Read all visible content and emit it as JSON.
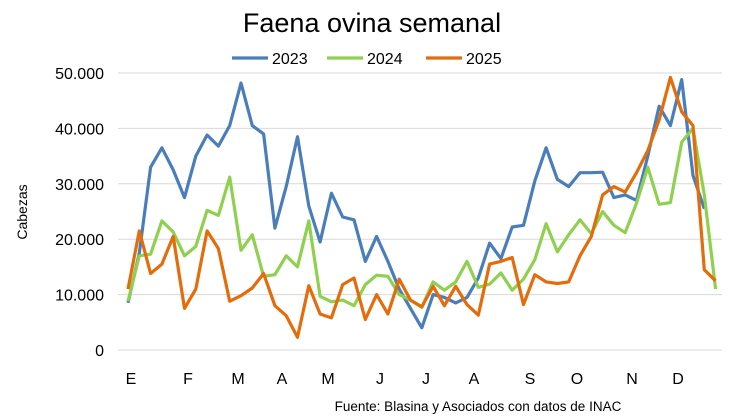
{
  "chart_data": {
    "type": "line",
    "title": "Faena ovina semanal",
    "ylabel": "Cabezas",
    "xlabel": "",
    "ylim": [
      0,
      50000
    ],
    "y_ticks": [
      "0",
      "10.000",
      "20.000",
      "30.000",
      "40.000",
      "50.000"
    ],
    "x_tick_labels": [
      "E",
      "F",
      "M",
      "A",
      "M",
      "J",
      "J",
      "A",
      "S",
      "O",
      "N",
      "D"
    ],
    "grid": "horizontal",
    "legend_position": "top",
    "source": "Fuente: Blasina y Asociados con datos de INAC",
    "series": [
      {
        "name": "2023",
        "color": "#4a7ebb",
        "values": [
          8500,
          17500,
          33000,
          36500,
          32500,
          27500,
          35000,
          38800,
          36800,
          40500,
          48200,
          40500,
          39000,
          22000,
          29500,
          38500,
          26000,
          19500,
          28300,
          24000,
          23500,
          16000,
          20500,
          16000,
          11000,
          7500,
          4000,
          10000,
          9500,
          8500,
          9500,
          13000,
          19300,
          16500,
          22200,
          22500,
          30500,
          36500,
          30800,
          29500,
          32000,
          32000,
          32100,
          27500,
          28000,
          27000,
          35000,
          44000,
          40500,
          48800,
          31500,
          25500
        ]
      },
      {
        "name": "2024",
        "color": "#8fd14f",
        "values": [
          8800,
          17000,
          17300,
          23300,
          21300,
          17000,
          18700,
          25200,
          24300,
          31200,
          18000,
          20800,
          13300,
          13600,
          17000,
          15000,
          23300,
          9700,
          8700,
          9000,
          8000,
          11800,
          13500,
          13300,
          10000,
          9000,
          7700,
          12300,
          10800,
          12300,
          16000,
          11300,
          11900,
          13900,
          10800,
          12800,
          16300,
          22800,
          17700,
          20800,
          23500,
          21000,
          25000,
          22500,
          21200,
          26500,
          33000,
          26300,
          26600,
          37500,
          40000,
          28000,
          11000
        ]
      },
      {
        "name": "2025",
        "color": "#e46c0a",
        "values": [
          11000,
          21500,
          13800,
          15500,
          20500,
          7500,
          11000,
          21500,
          18300,
          8800,
          9800,
          11200,
          13800,
          8000,
          6200,
          2300,
          11600,
          6500,
          5800,
          11800,
          13000,
          5500,
          10000,
          6500,
          12800,
          9000,
          7800,
          11500,
          8000,
          11500,
          8200,
          6300,
          15500,
          16000,
          16700,
          8200,
          13600,
          12300,
          12000,
          12300,
          17000,
          20500,
          28000,
          29500,
          28500,
          32000,
          36000,
          41500,
          49200,
          43000,
          40500,
          14500,
          12500
        ]
      }
    ]
  }
}
